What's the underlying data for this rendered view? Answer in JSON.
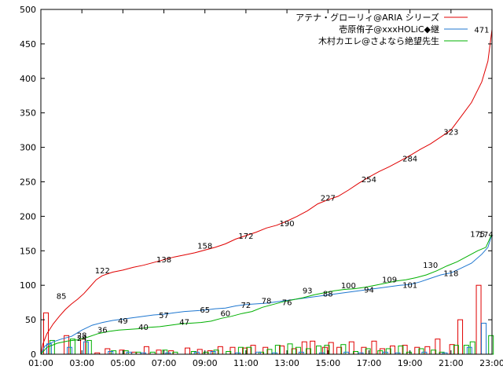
{
  "chart_data": {
    "type": "line",
    "x_tick_labels": [
      "01:00",
      "03:00",
      "05:00",
      "07:00",
      "09:00",
      "11:00",
      "13:00",
      "15:00",
      "17:00",
      "19:00",
      "21:00",
      "23:00"
    ],
    "y_tick_labels": [
      "0",
      "50",
      "100",
      "150",
      "200",
      "250",
      "300",
      "350",
      "400",
      "450",
      "500"
    ],
    "xlim_hours": [
      1,
      23
    ],
    "ylim": [
      0,
      500
    ],
    "legend_position": "top-right",
    "series": [
      {
        "name": "アテナ・グローリィ@ARIA シリーズ",
        "color": "#e00000",
        "points": [
          [
            1.0,
            0
          ],
          [
            1.1,
            15
          ],
          [
            1.3,
            30
          ],
          [
            1.6,
            44
          ],
          [
            1.9,
            55
          ],
          [
            2.2,
            65
          ],
          [
            2.5,
            73
          ],
          [
            2.8,
            80
          ],
          [
            3.1,
            88
          ],
          [
            3.4,
            98
          ],
          [
            3.7,
            108
          ],
          [
            4.0,
            114
          ],
          [
            4.5,
            119
          ],
          [
            5.0,
            122
          ],
          [
            5.5,
            126
          ],
          [
            6.0,
            129
          ],
          [
            6.5,
            133
          ],
          [
            7.0,
            137
          ],
          [
            7.5,
            141
          ],
          [
            8.0,
            144
          ],
          [
            8.5,
            147
          ],
          [
            9.0,
            151
          ],
          [
            9.5,
            155
          ],
          [
            10.0,
            160
          ],
          [
            10.5,
            167
          ],
          [
            11.0,
            172
          ],
          [
            11.5,
            177
          ],
          [
            12.0,
            183
          ],
          [
            12.5,
            187
          ],
          [
            13.0,
            193
          ],
          [
            13.5,
            200
          ],
          [
            14.0,
            208
          ],
          [
            14.5,
            218
          ],
          [
            15.0,
            224
          ],
          [
            15.5,
            229
          ],
          [
            16.0,
            238
          ],
          [
            16.5,
            248
          ],
          [
            17.0,
            257
          ],
          [
            17.5,
            265
          ],
          [
            18.0,
            272
          ],
          [
            18.5,
            280
          ],
          [
            19.0,
            288
          ],
          [
            19.5,
            297
          ],
          [
            20.0,
            305
          ],
          [
            20.5,
            315
          ],
          [
            21.0,
            325
          ],
          [
            21.5,
            345
          ],
          [
            22.0,
            365
          ],
          [
            22.5,
            395
          ],
          [
            22.8,
            425
          ],
          [
            23.0,
            471
          ]
        ],
        "labels": [
          [
            2.0,
            85
          ],
          [
            4.0,
            122
          ],
          [
            7.0,
            138
          ],
          [
            9.0,
            158
          ],
          [
            11.0,
            172
          ],
          [
            13.0,
            190
          ],
          [
            15.0,
            227
          ],
          [
            17.0,
            254
          ],
          [
            19.0,
            284
          ],
          [
            21.0,
            323
          ],
          [
            22.5,
            471
          ]
        ]
      },
      {
        "name": "壱原侑子@xxxHOLiC◆継",
        "color": "#1f77d0",
        "points": [
          [
            1.0,
            0
          ],
          [
            1.2,
            12
          ],
          [
            1.6,
            18
          ],
          [
            2.0,
            22
          ],
          [
            2.5,
            26
          ],
          [
            3.0,
            35
          ],
          [
            3.5,
            42
          ],
          [
            4.0,
            46
          ],
          [
            4.5,
            49
          ],
          [
            5.0,
            51
          ],
          [
            5.5,
            53
          ],
          [
            6.0,
            55
          ],
          [
            6.5,
            57
          ],
          [
            7.0,
            58
          ],
          [
            7.5,
            60
          ],
          [
            8.0,
            62
          ],
          [
            8.5,
            63
          ],
          [
            9.0,
            64
          ],
          [
            9.5,
            66
          ],
          [
            10.0,
            67
          ],
          [
            10.5,
            70
          ],
          [
            11.0,
            72
          ],
          [
            11.5,
            73
          ],
          [
            12.0,
            74
          ],
          [
            12.5,
            76
          ],
          [
            13.0,
            78
          ],
          [
            13.5,
            80
          ],
          [
            14.0,
            82
          ],
          [
            14.5,
            84
          ],
          [
            15.0,
            86
          ],
          [
            15.5,
            88
          ],
          [
            16.0,
            90
          ],
          [
            16.5,
            92
          ],
          [
            17.0,
            94
          ],
          [
            17.5,
            96
          ],
          [
            18.0,
            98
          ],
          [
            18.5,
            100
          ],
          [
            19.0,
            101
          ],
          [
            19.5,
            105
          ],
          [
            20.0,
            110
          ],
          [
            20.5,
            115
          ],
          [
            21.0,
            118
          ],
          [
            21.5,
            125
          ],
          [
            22.0,
            132
          ],
          [
            22.5,
            145
          ],
          [
            22.8,
            155
          ],
          [
            23.0,
            174
          ]
        ],
        "labels": [
          [
            3.0,
            24
          ],
          [
            5.0,
            49
          ],
          [
            7.0,
            57
          ],
          [
            9.0,
            65
          ],
          [
            11.0,
            72
          ],
          [
            13.0,
            76
          ],
          [
            15.0,
            88
          ],
          [
            17.0,
            94
          ],
          [
            19.0,
            101
          ],
          [
            21.0,
            118
          ],
          [
            22.7,
            174
          ]
        ]
      },
      {
        "name": "木村カエレ@さよなら絶望先生",
        "color": "#00b000",
        "points": [
          [
            1.0,
            0
          ],
          [
            1.3,
            10
          ],
          [
            1.8,
            16
          ],
          [
            2.3,
            19
          ],
          [
            2.8,
            21
          ],
          [
            3.3,
            25
          ],
          [
            3.8,
            30
          ],
          [
            4.3,
            33
          ],
          [
            4.8,
            35
          ],
          [
            5.3,
            36
          ],
          [
            5.8,
            37
          ],
          [
            6.3,
            39
          ],
          [
            6.8,
            40
          ],
          [
            7.3,
            42
          ],
          [
            7.8,
            44
          ],
          [
            8.3,
            45
          ],
          [
            8.8,
            46
          ],
          [
            9.3,
            48
          ],
          [
            9.8,
            52
          ],
          [
            10.3,
            55
          ],
          [
            10.8,
            59
          ],
          [
            11.3,
            62
          ],
          [
            11.8,
            68
          ],
          [
            12.3,
            72
          ],
          [
            12.8,
            76
          ],
          [
            13.3,
            79
          ],
          [
            13.8,
            82
          ],
          [
            14.3,
            86
          ],
          [
            14.8,
            89
          ],
          [
            15.3,
            92
          ],
          [
            15.8,
            94
          ],
          [
            16.3,
            95
          ],
          [
            16.8,
            97
          ],
          [
            17.3,
            100
          ],
          [
            17.8,
            103
          ],
          [
            18.3,
            106
          ],
          [
            18.8,
            108
          ],
          [
            19.3,
            111
          ],
          [
            19.8,
            115
          ],
          [
            20.3,
            121
          ],
          [
            20.8,
            128
          ],
          [
            21.3,
            134
          ],
          [
            21.8,
            142
          ],
          [
            22.3,
            150
          ],
          [
            22.7,
            155
          ],
          [
            23.0,
            175
          ]
        ],
        "labels": [
          [
            3.0,
            28
          ],
          [
            4.0,
            36
          ],
          [
            6.0,
            40
          ],
          [
            8.0,
            47
          ],
          [
            10.0,
            60
          ],
          [
            12.0,
            78
          ],
          [
            14.0,
            93
          ],
          [
            16.0,
            100
          ],
          [
            18.0,
            109
          ],
          [
            20.0,
            130
          ],
          [
            22.3,
            175
          ]
        ]
      }
    ],
    "bars": {
      "red": [
        [
          1.25,
          60
        ],
        [
          2.25,
          27
        ],
        [
          3.05,
          22
        ],
        [
          3.75,
          2
        ],
        [
          4.25,
          8
        ],
        [
          4.95,
          6
        ],
        [
          5.55,
          3
        ],
        [
          6.15,
          11
        ],
        [
          6.75,
          6
        ],
        [
          7.35,
          5
        ],
        [
          8.15,
          9
        ],
        [
          8.75,
          7
        ],
        [
          9.25,
          5
        ],
        [
          9.75,
          11
        ],
        [
          10.35,
          10
        ],
        [
          10.95,
          9
        ],
        [
          11.35,
          13
        ],
        [
          11.95,
          10
        ],
        [
          12.75,
          12
        ],
        [
          13.35,
          8
        ],
        [
          13.85,
          18
        ],
        [
          14.25,
          19
        ],
        [
          14.85,
          10
        ],
        [
          15.15,
          17
        ],
        [
          15.55,
          10
        ],
        [
          16.15,
          18
        ],
        [
          16.75,
          10
        ],
        [
          17.25,
          19
        ],
        [
          17.65,
          8
        ],
        [
          18.15,
          12
        ],
        [
          18.75,
          13
        ],
        [
          19.35,
          10
        ],
        [
          19.85,
          11
        ],
        [
          20.35,
          22
        ],
        [
          21.05,
          14
        ],
        [
          21.45,
          50
        ],
        [
          22.35,
          100
        ]
      ],
      "green": [
        [
          1.55,
          20
        ],
        [
          2.55,
          22
        ],
        [
          3.35,
          20
        ],
        [
          4.55,
          5
        ],
        [
          5.15,
          5
        ],
        [
          5.75,
          3
        ],
        [
          6.45,
          3
        ],
        [
          7.05,
          6
        ],
        [
          7.55,
          3
        ],
        [
          8.45,
          4
        ],
        [
          9.05,
          3
        ],
        [
          9.55,
          6
        ],
        [
          10.15,
          4
        ],
        [
          10.75,
          10
        ],
        [
          11.15,
          10
        ],
        [
          11.75,
          3
        ],
        [
          12.15,
          7
        ],
        [
          12.55,
          13
        ],
        [
          13.15,
          15
        ],
        [
          13.55,
          10
        ],
        [
          14.05,
          8
        ],
        [
          14.55,
          12
        ],
        [
          14.95,
          13
        ],
        [
          15.75,
          14
        ],
        [
          16.35,
          4
        ],
        [
          16.95,
          8
        ],
        [
          17.55,
          5
        ],
        [
          17.95,
          8
        ],
        [
          18.55,
          12
        ],
        [
          18.95,
          3
        ],
        [
          19.55,
          8
        ],
        [
          20.15,
          6
        ],
        [
          20.55,
          3
        ],
        [
          21.25,
          13
        ],
        [
          21.75,
          13
        ],
        [
          22.05,
          18
        ],
        [
          22.95,
          27
        ]
      ],
      "blue": [
        [
          1.4,
          15
        ],
        [
          2.4,
          10
        ],
        [
          3.2,
          18
        ],
        [
          4.4,
          4
        ],
        [
          5.3,
          3
        ],
        [
          6.0,
          2
        ],
        [
          7.2,
          2
        ],
        [
          8.6,
          3
        ],
        [
          9.4,
          4
        ],
        [
          10.6,
          2
        ],
        [
          11.6,
          3
        ],
        [
          12.4,
          2
        ],
        [
          13.7,
          3
        ],
        [
          14.7,
          2
        ],
        [
          15.9,
          3
        ],
        [
          16.6,
          2
        ],
        [
          17.8,
          3
        ],
        [
          18.4,
          2
        ],
        [
          19.7,
          3
        ],
        [
          20.7,
          2
        ],
        [
          21.9,
          10
        ],
        [
          22.6,
          45
        ]
      ]
    }
  }
}
